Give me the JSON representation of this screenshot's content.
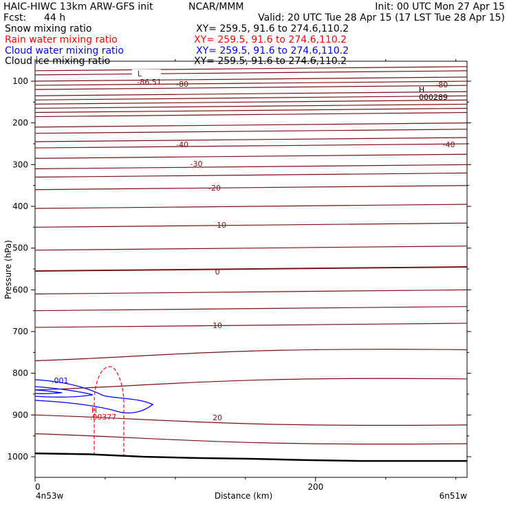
{
  "header": {
    "model": "HAIC-HIWC 13km ARW-GFS init",
    "org": "NCAR/MMM",
    "init": "Init: 00 UTC Mon 27 Apr 15",
    "fcst_label": "Fcst:",
    "fcst_value": "44 h",
    "valid": "Valid: 20 UTC Tue 28 Apr 15 (17 LST Tue 28 Apr 15)"
  },
  "fields": [
    {
      "name": "Snow mixing ratio",
      "xy": "XY= 259.5, 91.6 to 274.6,110.2",
      "color": "#000000"
    },
    {
      "name": "Rain water mixing ratio",
      "xy": "XY= 259.5, 91.6 to 274.6,110.2",
      "color": "#ff0000"
    },
    {
      "name": "Cloud water mixing ratio",
      "xy": "XY= 259.5, 91.6 to 274.6,110.2",
      "color": "#0000ff"
    },
    {
      "name": "Cloud ice mixing ratio",
      "xy": "XY= 259.5, 91.6 to 274.6,110.2",
      "color": "#000000"
    }
  ],
  "chart_data": {
    "type": "line",
    "ylabel": "Pressure (hPa)",
    "xlabel": "Distance (km)",
    "x_left_label": "4n53w",
    "x_right_label": "6n51w",
    "xlim": [
      0,
      308
    ],
    "ylim": [
      1050,
      65
    ],
    "x_ticks": [
      {
        "v": 0,
        "label": "0"
      },
      {
        "v": 200,
        "label": "200"
      }
    ],
    "y_ticks": [
      100,
      200,
      300,
      400,
      500,
      600,
      700,
      800,
      900,
      1000
    ],
    "temperature_color": "#7a1010",
    "temperature_levels": [
      {
        "value": -80,
        "label": "-80"
      },
      {
        "value": -40,
        "label": "-40"
      },
      {
        "value": -30,
        "label": "-30"
      },
      {
        "value": -20,
        "label": "-20"
      },
      {
        "value": -10,
        "label": "-10"
      },
      {
        "value": 0,
        "label": "0"
      },
      {
        "value": 10,
        "label": "10"
      },
      {
        "value": 20,
        "label": "20"
      }
    ],
    "temperature_isotherms_hpa": [
      75,
      85,
      100,
      110,
      120,
      135,
      145,
      155,
      165,
      175,
      185,
      210,
      225,
      245,
      260,
      285,
      310,
      330,
      360,
      405,
      450,
      505,
      555,
      610,
      650,
      690,
      770,
      840,
      900,
      945
    ],
    "extrema": [
      {
        "type": "L",
        "value": "-86.51",
        "x": 75,
        "p": 85
      },
      {
        "type": "H",
        "value": "000289",
        "x": 280,
        "p": 118
      },
      {
        "type": "H",
        "value": ".00377",
        "x": 42,
        "p": 880
      }
    ],
    "cloud_water_label": ".001",
    "terrain_hpa": [
      992,
      994,
      1000,
      1003,
      1005,
      1008,
      1010,
      1010,
      1010
    ]
  }
}
